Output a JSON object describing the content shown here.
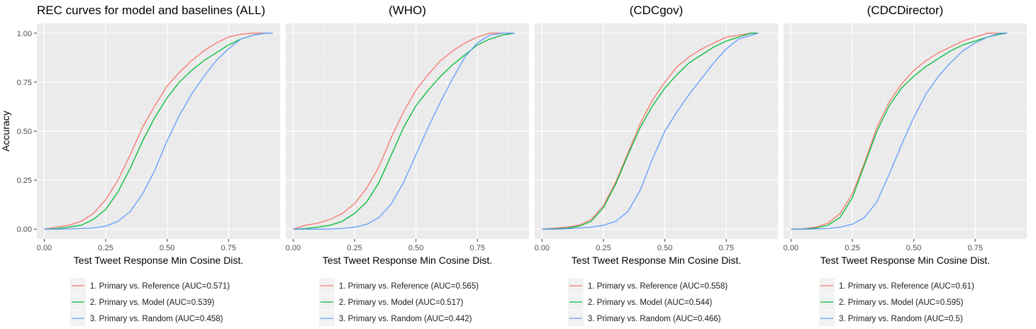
{
  "y_axis_label": "Accuracy",
  "colors": {
    "panel_background": "#ebebeb",
    "grid_major": "#ffffff",
    "series": [
      "#f8766d",
      "#00ba38",
      "#619cff"
    ]
  },
  "chart_data": [
    {
      "type": "line",
      "title": "REC curves for model and baselines (ALL)",
      "xlabel": "Test Tweet Response Min Cosine Dist.",
      "ylabel": "Accuracy",
      "xlim": [
        -0.03,
        0.96
      ],
      "ylim": [
        -0.05,
        1.05
      ],
      "xticks": [
        "0.00",
        "0.25",
        "0.50",
        "0.75"
      ],
      "xtick_values": [
        0,
        0.25,
        0.5,
        0.75
      ],
      "yticks": [
        "0.00",
        "0.25",
        "0.50",
        "0.75",
        "1.00"
      ],
      "ytick_values": [
        0,
        0.25,
        0.5,
        0.75,
        1
      ],
      "grid": true,
      "legend_position": "bottom",
      "series": [
        {
          "name": "1. Primary vs. Reference (AUC=0.571)",
          "color": "#f8766d",
          "x": [
            0,
            0.05,
            0.1,
            0.15,
            0.2,
            0.25,
            0.3,
            0.35,
            0.4,
            0.45,
            0.5,
            0.55,
            0.6,
            0.65,
            0.7,
            0.75,
            0.8,
            0.85,
            0.9
          ],
          "y": [
            0,
            0.01,
            0.02,
            0.04,
            0.08,
            0.15,
            0.25,
            0.38,
            0.52,
            0.63,
            0.73,
            0.8,
            0.86,
            0.91,
            0.95,
            0.98,
            0.995,
            1.0,
            1.0
          ]
        },
        {
          "name": "2. Primary vs. Model (AUC=0.539)",
          "color": "#00ba38",
          "x": [
            0,
            0.05,
            0.1,
            0.15,
            0.2,
            0.25,
            0.3,
            0.35,
            0.4,
            0.45,
            0.5,
            0.55,
            0.6,
            0.65,
            0.7,
            0.75,
            0.8,
            0.85,
            0.9,
            0.92
          ],
          "y": [
            0,
            0.003,
            0.01,
            0.02,
            0.05,
            0.1,
            0.19,
            0.31,
            0.45,
            0.57,
            0.67,
            0.75,
            0.81,
            0.86,
            0.9,
            0.94,
            0.97,
            0.99,
            1.0,
            1.0
          ]
        },
        {
          "name": "3. Primary vs. Random (AUC=0.458)",
          "color": "#619cff",
          "x": [
            0,
            0.05,
            0.1,
            0.15,
            0.2,
            0.25,
            0.3,
            0.35,
            0.4,
            0.45,
            0.5,
            0.55,
            0.6,
            0.65,
            0.7,
            0.75,
            0.8,
            0.85,
            0.9,
            0.93
          ],
          "y": [
            0,
            0,
            0.001,
            0.003,
            0.006,
            0.015,
            0.04,
            0.09,
            0.18,
            0.3,
            0.45,
            0.58,
            0.69,
            0.78,
            0.86,
            0.92,
            0.97,
            0.99,
            1.0,
            1.0
          ]
        }
      ]
    },
    {
      "type": "line",
      "title": "(WHO)",
      "xlabel": "Test Tweet Response Min Cosine Dist.",
      "ylabel": "",
      "xlim": [
        -0.03,
        0.96
      ],
      "ylim": [
        -0.05,
        1.05
      ],
      "xticks": [
        "0.00",
        "0.25",
        "0.50",
        "0.75"
      ],
      "xtick_values": [
        0,
        0.25,
        0.5,
        0.75
      ],
      "yticks": [],
      "ytick_values": [
        0,
        0.25,
        0.5,
        0.75,
        1
      ],
      "grid": true,
      "legend_position": "bottom",
      "series": [
        {
          "name": "1. Primary vs. Reference (AUC=0.565)",
          "color": "#f8766d",
          "x": [
            0,
            0.05,
            0.1,
            0.15,
            0.2,
            0.25,
            0.3,
            0.35,
            0.4,
            0.45,
            0.5,
            0.55,
            0.6,
            0.65,
            0.7,
            0.75,
            0.8,
            0.85,
            0.9
          ],
          "y": [
            0,
            0.02,
            0.03,
            0.05,
            0.08,
            0.13,
            0.21,
            0.32,
            0.47,
            0.6,
            0.71,
            0.79,
            0.86,
            0.91,
            0.95,
            0.98,
            1.0,
            1.0,
            1.0
          ]
        },
        {
          "name": "2. Primary vs. Model (AUC=0.517)",
          "color": "#00ba38",
          "x": [
            0,
            0.05,
            0.1,
            0.15,
            0.2,
            0.25,
            0.3,
            0.35,
            0.4,
            0.45,
            0.5,
            0.55,
            0.6,
            0.65,
            0.7,
            0.75,
            0.8,
            0.85,
            0.9
          ],
          "y": [
            0,
            0.003,
            0.01,
            0.02,
            0.04,
            0.08,
            0.14,
            0.24,
            0.38,
            0.52,
            0.63,
            0.71,
            0.78,
            0.84,
            0.89,
            0.94,
            0.97,
            0.99,
            1.0
          ]
        },
        {
          "name": "3. Primary vs. Random (AUC=0.442)",
          "color": "#619cff",
          "x": [
            0,
            0.05,
            0.1,
            0.15,
            0.2,
            0.25,
            0.3,
            0.35,
            0.4,
            0.45,
            0.5,
            0.55,
            0.6,
            0.65,
            0.7,
            0.75,
            0.8,
            0.85,
            0.9
          ],
          "y": [
            0,
            0,
            0,
            0.001,
            0.003,
            0.01,
            0.025,
            0.06,
            0.13,
            0.24,
            0.38,
            0.52,
            0.65,
            0.77,
            0.88,
            0.95,
            0.99,
            1.0,
            1.0
          ]
        }
      ]
    },
    {
      "type": "line",
      "title": "(CDCgov)",
      "xlabel": "Test Tweet Response Min Cosine Dist.",
      "ylabel": "",
      "xlim": [
        -0.03,
        0.96
      ],
      "ylim": [
        -0.05,
        1.05
      ],
      "xticks": [
        "0.00",
        "0.25",
        "0.50",
        "0.75"
      ],
      "xtick_values": [
        0,
        0.25,
        0.5,
        0.75
      ],
      "yticks": [],
      "ytick_values": [
        0,
        0.25,
        0.5,
        0.75,
        1
      ],
      "grid": true,
      "legend_position": "bottom",
      "series": [
        {
          "name": "1. Primary vs. Reference (AUC=0.558)",
          "color": "#f8766d",
          "x": [
            0,
            0.05,
            0.1,
            0.15,
            0.2,
            0.25,
            0.3,
            0.35,
            0.4,
            0.45,
            0.5,
            0.55,
            0.6,
            0.65,
            0.7,
            0.75,
            0.8,
            0.85,
            0.88
          ],
          "y": [
            0,
            0.005,
            0.01,
            0.02,
            0.05,
            0.12,
            0.24,
            0.39,
            0.54,
            0.66,
            0.75,
            0.83,
            0.88,
            0.92,
            0.95,
            0.98,
            0.99,
            1.0,
            1.0
          ]
        },
        {
          "name": "2. Primary vs. Model (AUC=0.544)",
          "color": "#00ba38",
          "x": [
            0,
            0.05,
            0.1,
            0.15,
            0.2,
            0.25,
            0.3,
            0.35,
            0.4,
            0.45,
            0.5,
            0.55,
            0.6,
            0.65,
            0.7,
            0.75,
            0.8,
            0.85,
            0.88
          ],
          "y": [
            0,
            0.002,
            0.005,
            0.015,
            0.04,
            0.11,
            0.23,
            0.38,
            0.52,
            0.63,
            0.72,
            0.79,
            0.85,
            0.89,
            0.93,
            0.96,
            0.98,
            1.0,
            1.0
          ]
        },
        {
          "name": "3. Primary vs. Random (AUC=0.466)",
          "color": "#619cff",
          "x": [
            0,
            0.05,
            0.1,
            0.15,
            0.2,
            0.25,
            0.3,
            0.35,
            0.4,
            0.45,
            0.5,
            0.55,
            0.6,
            0.65,
            0.7,
            0.75,
            0.8,
            0.85,
            0.88
          ],
          "y": [
            0,
            0,
            0.002,
            0.005,
            0.01,
            0.02,
            0.04,
            0.09,
            0.2,
            0.36,
            0.5,
            0.6,
            0.69,
            0.77,
            0.85,
            0.92,
            0.97,
            0.99,
            1.0
          ]
        }
      ]
    },
    {
      "type": "line",
      "title": "(CDCDirector)",
      "xlabel": "Test Tweet Response Min Cosine Dist.",
      "ylabel": "",
      "xlim": [
        -0.03,
        0.96
      ],
      "ylim": [
        -0.05,
        1.05
      ],
      "xticks": [
        "0.00",
        "0.25",
        "0.50",
        "0.75"
      ],
      "xtick_values": [
        0,
        0.25,
        0.5,
        0.75
      ],
      "yticks": [],
      "ytick_values": [
        0,
        0.25,
        0.5,
        0.75,
        1
      ],
      "grid": true,
      "legend_position": "bottom",
      "series": [
        {
          "name": "1. Primary vs. Reference (AUC=0.61)",
          "color": "#f8766d",
          "x": [
            0,
            0.05,
            0.1,
            0.15,
            0.2,
            0.25,
            0.3,
            0.35,
            0.4,
            0.45,
            0.5,
            0.55,
            0.6,
            0.65,
            0.7,
            0.75,
            0.8,
            0.85,
            0.88
          ],
          "y": [
            0,
            0.002,
            0.01,
            0.03,
            0.08,
            0.18,
            0.34,
            0.52,
            0.65,
            0.74,
            0.81,
            0.86,
            0.9,
            0.93,
            0.96,
            0.98,
            1.0,
            1.0,
            1.0
          ]
        },
        {
          "name": "2. Primary vs. Model (AUC=0.595)",
          "color": "#00ba38",
          "x": [
            0,
            0.05,
            0.1,
            0.15,
            0.2,
            0.25,
            0.3,
            0.35,
            0.4,
            0.45,
            0.5,
            0.55,
            0.6,
            0.65,
            0.7,
            0.75,
            0.8,
            0.85,
            0.88
          ],
          "y": [
            0,
            0.001,
            0.005,
            0.02,
            0.06,
            0.16,
            0.33,
            0.5,
            0.63,
            0.72,
            0.78,
            0.83,
            0.87,
            0.91,
            0.94,
            0.96,
            0.98,
            0.995,
            1.0
          ]
        },
        {
          "name": "3. Primary vs. Random (AUC=0.5)",
          "color": "#619cff",
          "x": [
            0,
            0.05,
            0.1,
            0.15,
            0.2,
            0.25,
            0.3,
            0.35,
            0.4,
            0.45,
            0.5,
            0.55,
            0.6,
            0.65,
            0.7,
            0.75,
            0.8,
            0.85,
            0.88
          ],
          "y": [
            0,
            0,
            0.001,
            0.003,
            0.01,
            0.025,
            0.06,
            0.14,
            0.28,
            0.43,
            0.57,
            0.69,
            0.78,
            0.85,
            0.91,
            0.95,
            0.98,
            1.0,
            1.0
          ]
        }
      ]
    }
  ]
}
